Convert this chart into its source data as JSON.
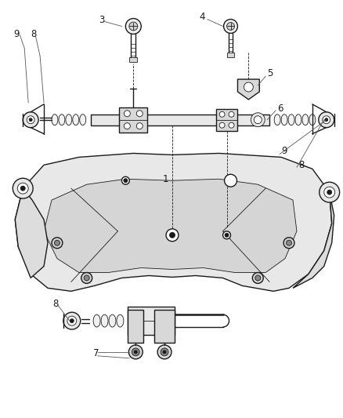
{
  "bg_color": "#ffffff",
  "line_color": "#1a1a1a",
  "label_color": "#1a1a1a",
  "lw_main": 1.0,
  "lw_thick": 1.8,
  "lw_thin": 0.6
}
